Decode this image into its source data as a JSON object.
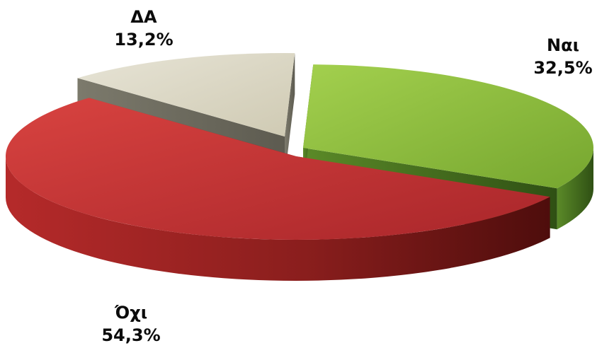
{
  "chart_data": {
    "type": "pie",
    "title": "",
    "slices": [
      {
        "label": "Ναι",
        "value": 32.5,
        "value_text": "32,5%",
        "color": "#8fc23f",
        "side_color": "#3f6b1c"
      },
      {
        "label": "Όχι",
        "value": 54.3,
        "value_text": "54,3%",
        "color": "#c73534",
        "side_color": "#7a1614"
      },
      {
        "label": "ΔΑ",
        "value": 13.2,
        "value_text": "13,2%",
        "color": "#dcd8c5",
        "side_color": "#8f8c7c"
      }
    ],
    "style": "3d-exploded",
    "legend": "none"
  }
}
